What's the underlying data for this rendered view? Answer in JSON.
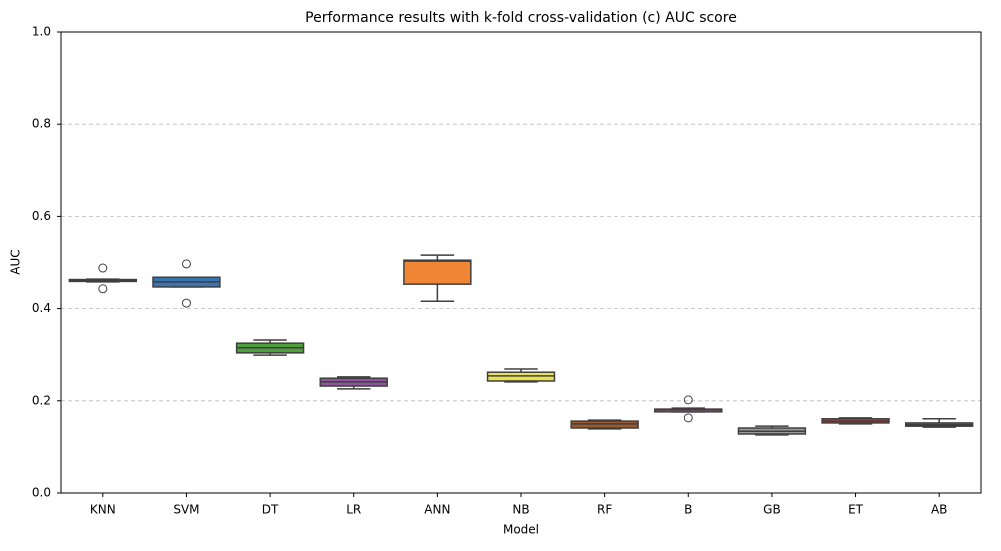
{
  "chart_data": {
    "type": "box",
    "title": "Performance results with k-fold cross-validation (c) AUC score",
    "x_label": "Model",
    "y_label": "AUC",
    "categories": [
      "KNN",
      "SVM",
      "DT",
      "LR",
      "ANN",
      "NB",
      "RF",
      "B",
      "GB",
      "ET",
      "AB"
    ],
    "colors": [
      "#c8383a",
      "#3b75af",
      "#519e3e",
      "#8d569b",
      "#ef8636",
      "#e8e24e",
      "#9c5a33",
      "#d57fbe",
      "#999999",
      "#c8383a",
      "#3b75af"
    ],
    "whislo": [
      0.458,
      0.447,
      0.299,
      0.226,
      0.416,
      0.241,
      0.139,
      0.176,
      0.126,
      0.15,
      0.143
    ],
    "q1": [
      0.459,
      0.447,
      0.304,
      0.232,
      0.453,
      0.243,
      0.141,
      0.176,
      0.128,
      0.152,
      0.145
    ],
    "median": [
      0.461,
      0.458,
      0.315,
      0.241,
      0.503,
      0.254,
      0.15,
      0.18,
      0.134,
      0.156,
      0.148
    ],
    "q3": [
      0.463,
      0.468,
      0.325,
      0.249,
      0.505,
      0.262,
      0.156,
      0.182,
      0.141,
      0.161,
      0.152
    ],
    "whishi": [
      0.464,
      0.468,
      0.332,
      0.252,
      0.516,
      0.269,
      0.158,
      0.184,
      0.145,
      0.163,
      0.161
    ],
    "fliers": [
      [
        0.488,
        0.443
      ],
      [
        0.497,
        0.412
      ],
      [],
      [],
      [],
      [],
      [],
      [
        0.202,
        0.163
      ],
      [],
      [],
      []
    ],
    "ylim": [
      0,
      1
    ],
    "yticks": [
      {
        "value": 0,
        "label": "0.0"
      },
      0.2,
      0.4,
      0.6,
      0.8,
      {
        "value": 1,
        "label": "1.0"
      }
    ],
    "grid": true
  }
}
